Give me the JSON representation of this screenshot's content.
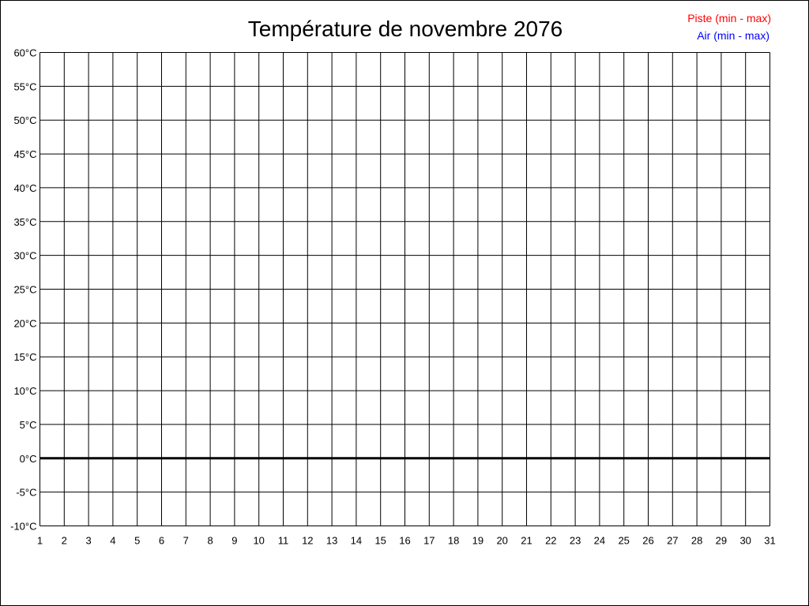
{
  "chart_data": {
    "type": "line",
    "title": "Température de novembre 2076",
    "xlabel": "",
    "ylabel": "",
    "x_ticks": [
      "1",
      "2",
      "3",
      "4",
      "5",
      "6",
      "7",
      "8",
      "9",
      "10",
      "11",
      "12",
      "13",
      "14",
      "15",
      "16",
      "17",
      "18",
      "19",
      "20",
      "21",
      "22",
      "23",
      "24",
      "25",
      "26",
      "27",
      "28",
      "29",
      "30",
      "31"
    ],
    "y_ticks": [
      "60°C",
      "55°C",
      "50°C",
      "45°C",
      "40°C",
      "35°C",
      "30°C",
      "25°C",
      "20°C",
      "15°C",
      "10°C",
      "5°C",
      "0°C",
      "-5°C",
      "-10°C"
    ],
    "xlim": [
      1,
      31
    ],
    "ylim": [
      -10,
      60
    ],
    "grid": true,
    "legend_position": "top-right",
    "series": [
      {
        "name": "Piste (min - max)",
        "color": "#ff0000",
        "values": []
      },
      {
        "name": "Air (min - max)",
        "color": "#0000ff",
        "values": []
      }
    ]
  }
}
